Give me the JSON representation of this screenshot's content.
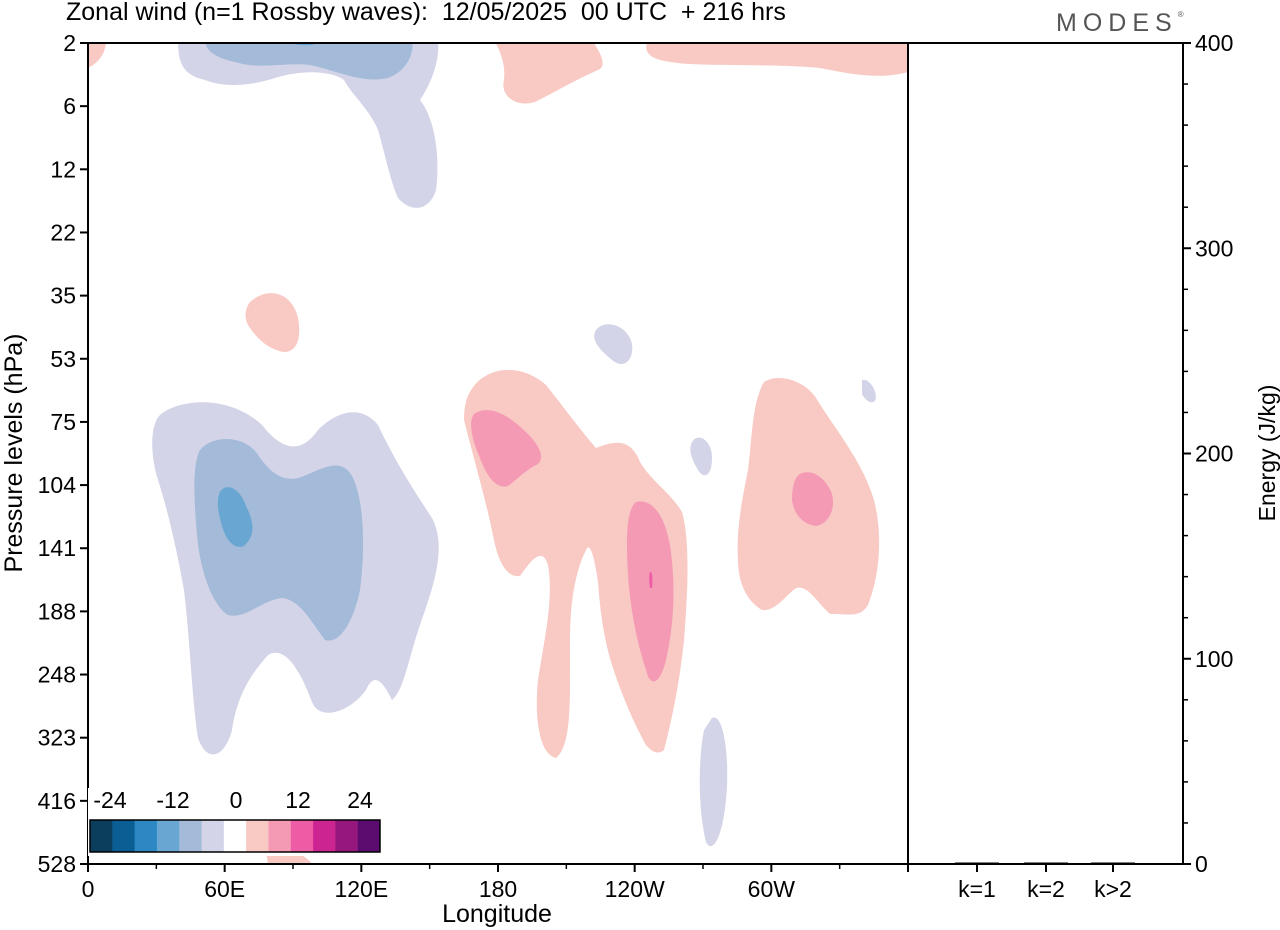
{
  "title": "Zonal wind (n=1 Rossby waves):  12/05/2025  00 UTC  + 216 hrs",
  "logo": "MODES",
  "chart_data": [
    {
      "type": "heatmap",
      "xlabel": "Longitude",
      "ylabel": "Pressure levels (hPa)",
      "x_ticks": [
        "0",
        "60E",
        "120E",
        "180",
        "120W",
        "60W"
      ],
      "y_ticks": [
        "2",
        "6",
        "12",
        "22",
        "35",
        "53",
        "75",
        "104",
        "141",
        "188",
        "248",
        "323",
        "416",
        "528"
      ],
      "legend": {
        "labels": [
          "-24",
          "-12",
          "0",
          "12",
          "24"
        ],
        "colors": [
          "#0b3d5c",
          "#0b5e94",
          "#2d87c2",
          "#6aa6d2",
          "#a3bbd9",
          "#d4d4e8",
          "#ffffff",
          "#f9c9c4",
          "#f59ab5",
          "#ee5ca6",
          "#cc2592",
          "#96187e",
          "#5b0c6e"
        ]
      },
      "features": [
        {
          "sign": "negative",
          "level": "-6",
          "lon": 42,
          "level_hpa": 2
        },
        {
          "sign": "negative",
          "level": "-3",
          "lon": 58,
          "level_hpa": 104
        },
        {
          "sign": "negative",
          "level": "-9",
          "lon": 66,
          "level_hpa": 104
        },
        {
          "sign": "negative",
          "level": "-15",
          "lon": 65,
          "level_hpa": 116
        },
        {
          "sign": "positive",
          "level": "3",
          "lon": 200,
          "level_hpa": 116
        },
        {
          "sign": "positive",
          "level": "6",
          "lon": 182,
          "level_hpa": 90
        },
        {
          "sign": "positive",
          "level": "6",
          "lon": 235,
          "level_hpa": 165
        },
        {
          "sign": "positive",
          "level": "3",
          "lon": 290,
          "level_hpa": 120
        },
        {
          "sign": "positive",
          "level": "6",
          "lon": 319,
          "level_hpa": 116
        }
      ]
    },
    {
      "type": "bar",
      "categories": [
        "k=1",
        "k=2",
        "k>2"
      ],
      "values": [
        0.6,
        0.1,
        0.3
      ],
      "ylabel": "Energy (J/kg)",
      "ylim": [
        0,
        400
      ],
      "y_ticks": [
        "0",
        "100",
        "200",
        "300",
        "400"
      ]
    }
  ],
  "colors": {
    "axis": "#000000",
    "logo": "#555555"
  }
}
